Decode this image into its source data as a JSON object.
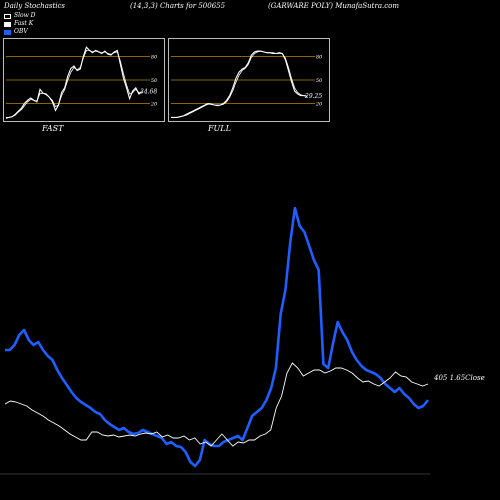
{
  "header": {
    "left": "Daily Stochastics",
    "center": "(14,3,3) Charts for 500655",
    "right": "(GARWARE POLY) MunafaSutra.com"
  },
  "legend": [
    {
      "label": "Slow D",
      "color": "#ffffff",
      "style": "outline"
    },
    {
      "label": "Fast K",
      "color": "#ffffff",
      "style": "fill"
    },
    {
      "label": "OBV",
      "color": "#1f5fff",
      "style": "fill"
    }
  ],
  "colors": {
    "background": "#000000",
    "obv": "#1f5fff",
    "close": "#ffffff",
    "guide": "#b8860b"
  },
  "chart_data": [
    {
      "type": "line",
      "name": "FAST",
      "title": "FAST",
      "ylim": [
        0,
        100
      ],
      "y_ticks": [
        20,
        50,
        80
      ],
      "guides": [
        20,
        50,
        80
      ],
      "last_value_label": "34.68",
      "series": [
        {
          "values": [
            1,
            2,
            3,
            6,
            10,
            14,
            20,
            24,
            27,
            24,
            22,
            38,
            33,
            32,
            28,
            22,
            11,
            18,
            34,
            40,
            55,
            65,
            68,
            62,
            64,
            80,
            92,
            88,
            85,
            88,
            86,
            84,
            87,
            83,
            82,
            86,
            88,
            70,
            52,
            40,
            26,
            36,
            40,
            32,
            35
          ]
        },
        {
          "values": [
            2,
            2,
            3,
            5,
            9,
            12,
            17,
            22,
            25,
            24,
            23,
            33,
            33,
            31,
            28,
            24,
            16,
            18,
            30,
            38,
            50,
            60,
            66,
            63,
            66,
            78,
            88,
            88,
            86,
            87,
            86,
            85,
            86,
            84,
            83,
            85,
            86,
            74,
            58,
            44,
            32,
            34,
            38,
            34,
            34.68
          ]
        }
      ]
    },
    {
      "type": "line",
      "name": "FULL",
      "title": "FULL",
      "ylim": [
        0,
        100
      ],
      "y_ticks": [
        20,
        50,
        80
      ],
      "guides": [
        20,
        50,
        80
      ],
      "last_value_label": "29.25",
      "series": [
        {
          "values": [
            2,
            2,
            2,
            3,
            4,
            6,
            8,
            10,
            12,
            14,
            16,
            18,
            20,
            19,
            18,
            17,
            18,
            20,
            24,
            30,
            40,
            52,
            60,
            64,
            66,
            72,
            82,
            86,
            87,
            87,
            86,
            85,
            85,
            84,
            84,
            85,
            84,
            76,
            62,
            48,
            36,
            32,
            30,
            30,
            29.25
          ]
        },
        {
          "values": [
            2,
            2,
            2,
            3,
            4,
            5,
            7,
            9,
            11,
            13,
            15,
            17,
            19,
            19,
            18,
            18,
            18,
            19,
            22,
            28,
            36,
            47,
            56,
            62,
            65,
            70,
            79,
            84,
            86,
            87,
            86,
            85,
            85,
            85,
            84,
            84,
            84,
            78,
            66,
            52,
            40,
            34,
            31,
            30,
            29
          ]
        }
      ]
    },
    {
      "type": "line",
      "name": "main",
      "last_value_label": "405 1.65Close",
      "series": [
        {
          "name": "OBV",
          "values": [
            350,
            350,
            345,
            335,
            330,
            340,
            345,
            342,
            350,
            356,
            360,
            370,
            378,
            385,
            392,
            398,
            402,
            405,
            408,
            412,
            414,
            420,
            424,
            427,
            430,
            428,
            432,
            434,
            433,
            430,
            432,
            434,
            436,
            438,
            444,
            442,
            446,
            447,
            452,
            462,
            466,
            460,
            440,
            444,
            446,
            446,
            442,
            440,
            438,
            436,
            440,
            428,
            416,
            412,
            408,
            400,
            388,
            368,
            314,
            290,
            243,
            208,
            226,
            232,
            246,
            260,
            270,
            364,
            368,
            344,
            322,
            332,
            340,
            352,
            360,
            366,
            370,
            372,
            374,
            378,
            384,
            388,
            392,
            388,
            394,
            398,
            404,
            408,
            406,
            400
          ]
        },
        {
          "values": [
            404,
            401,
            402,
            404,
            406,
            410,
            413,
            416,
            420,
            423,
            426,
            430,
            434,
            437,
            440,
            440,
            432,
            432,
            435,
            436,
            435,
            437,
            436,
            435,
            436,
            434,
            433,
            434,
            432,
            437,
            435,
            438,
            438,
            436,
            440,
            438,
            444,
            442,
            446,
            440,
            434,
            440,
            446,
            442,
            443,
            440,
            440,
            436,
            434,
            430,
            408,
            396,
            373,
            363,
            368,
            376,
            373,
            370,
            370,
            373,
            371,
            368,
            368,
            370,
            373,
            378,
            382,
            381,
            384,
            386,
            382,
            378,
            372,
            376,
            377,
            382,
            384,
            386,
            384
          ]
        }
      ]
    }
  ]
}
